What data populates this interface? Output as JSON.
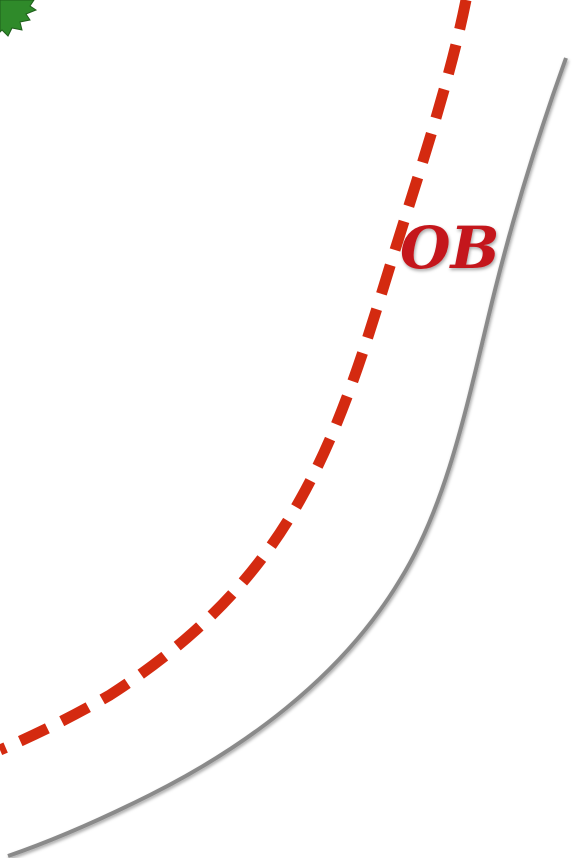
{
  "label": "OB"
}
